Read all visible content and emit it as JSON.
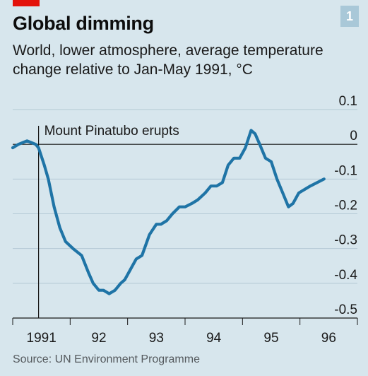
{
  "badge": "1",
  "colors": {
    "accent": "#e3120b",
    "line": "#1f74a6",
    "badge_bg": "#a9c8d8",
    "background": "#d7e6ed"
  },
  "chart_data": {
    "type": "line",
    "title": "Global dimming",
    "subtitle": "World, lower atmosphere, average temperature change relative to Jan-May 1991, °C",
    "source": "Source: UN Environment Programme",
    "ylim": [
      -0.5,
      0.1
    ],
    "yticks": [
      0.1,
      0,
      -0.1,
      -0.2,
      -0.3,
      -0.4,
      -0.5
    ],
    "ytick_labels": [
      "0.1",
      "0",
      "-0.1",
      "-0.2",
      "-0.3",
      "-0.4",
      "-0.5"
    ],
    "xlim": [
      1991,
      1997
    ],
    "xticks": [
      1991,
      1992,
      1993,
      1994,
      1995,
      1996
    ],
    "xtick_labels": [
      "1991",
      "92",
      "93",
      "94",
      "95",
      "96"
    ],
    "grid": true,
    "annotation": {
      "text": "Mount Pinatubo erupts",
      "x": 1991.45
    },
    "series": [
      {
        "x": [
          1991.0,
          1991.1,
          1991.25,
          1991.4,
          1991.45,
          1991.55,
          1991.62,
          1991.72,
          1991.82,
          1991.92,
          1992.05,
          1992.2,
          1992.32,
          1992.4,
          1992.5,
          1992.58,
          1992.68,
          1992.78,
          1992.88,
          1992.95,
          1993.05,
          1993.15,
          1993.25,
          1993.38,
          1993.5,
          1993.58,
          1993.68,
          1993.78,
          1993.9,
          1994.0,
          1994.12,
          1994.22,
          1994.35,
          1994.45,
          1994.55,
          1994.65,
          1994.75,
          1994.85,
          1994.95,
          1995.05,
          1995.15,
          1995.22,
          1995.3,
          1995.4,
          1995.5,
          1995.6,
          1995.7,
          1995.8,
          1995.88,
          1995.98,
          1996.08,
          1996.18,
          1996.3,
          1996.42
        ],
        "y": [
          -0.01,
          0.0,
          0.01,
          0.0,
          -0.01,
          -0.06,
          -0.1,
          -0.18,
          -0.24,
          -0.28,
          -0.3,
          -0.32,
          -0.37,
          -0.4,
          -0.42,
          -0.42,
          -0.43,
          -0.42,
          -0.4,
          -0.39,
          -0.36,
          -0.33,
          -0.32,
          -0.26,
          -0.23,
          -0.23,
          -0.22,
          -0.2,
          -0.18,
          -0.18,
          -0.17,
          -0.16,
          -0.14,
          -0.12,
          -0.12,
          -0.11,
          -0.06,
          -0.04,
          -0.04,
          -0.01,
          0.04,
          0.03,
          0.0,
          -0.04,
          -0.05,
          -0.1,
          -0.14,
          -0.18,
          -0.17,
          -0.14,
          -0.13,
          -0.12,
          -0.11,
          -0.1
        ]
      }
    ]
  }
}
